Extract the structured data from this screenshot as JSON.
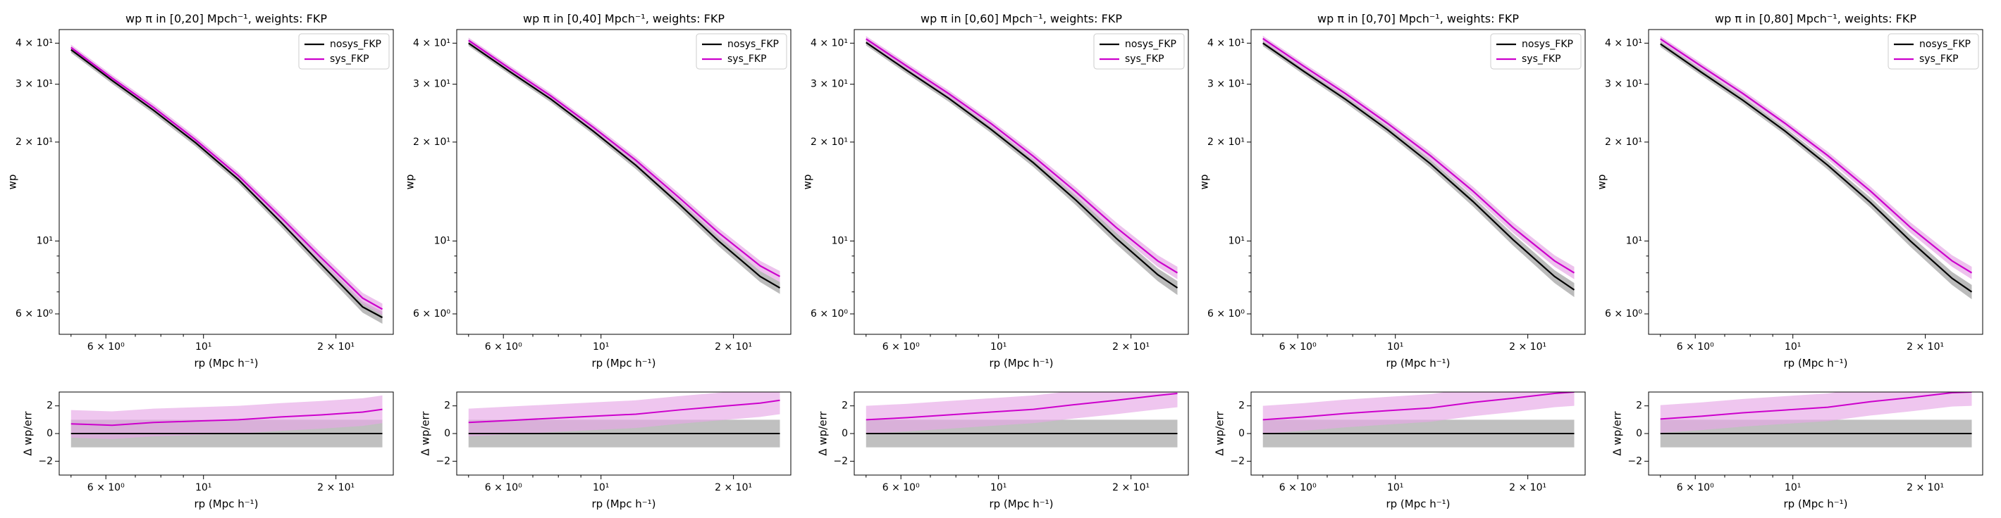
{
  "colors": {
    "nosys": "#000000",
    "sys": "#cc00cc",
    "nosys_band": "#9e9e9e",
    "sys_band": "#e6a8e6"
  },
  "legend_placement": "top-right",
  "chart_data": [
    {
      "type": "line",
      "title": "wp π in [0,20] Mpch⁻¹, weights: FKP",
      "top": {
        "xscale": "log",
        "yscale": "log",
        "xlabel": "rp (Mpc h⁻¹)",
        "ylabel": "wp",
        "xlim": [
          4.7,
          27
        ],
        "ylim": [
          5.2,
          44
        ],
        "xticks": [
          {
            "v": 6,
            "label": "6 × 10⁰"
          },
          {
            "v": 10,
            "label": "10¹"
          },
          {
            "v": 20,
            "label": "2 × 10¹"
          }
        ],
        "yticks": [
          {
            "v": 6,
            "label": "6 × 10⁰"
          },
          {
            "v": 10,
            "label": "10¹"
          },
          {
            "v": 20,
            "label": "2 × 10¹"
          },
          {
            "v": 30,
            "label": "3 × 10¹"
          },
          {
            "v": 40,
            "label": "4 × 10¹"
          }
        ],
        "x": [
          5,
          6.2,
          7.7,
          9.6,
          12,
          15,
          18.5,
          23,
          25.5
        ],
        "series": [
          {
            "name": "nosys_FKP",
            "values": [
              38.2,
              30.8,
              25.0,
              19.9,
              15.4,
              11.4,
              8.5,
              6.3,
              5.85
            ],
            "err": [
              0.8,
              0.7,
              0.6,
              0.5,
              0.4,
              0.35,
              0.3,
              0.25,
              0.25
            ]
          },
          {
            "name": "sys_FKP",
            "values": [
              38.8,
              31.3,
              25.5,
              20.3,
              15.8,
              11.8,
              8.9,
              6.7,
              6.2
            ],
            "err": [
              0.8,
              0.7,
              0.6,
              0.5,
              0.4,
              0.35,
              0.3,
              0.25,
              0.25
            ]
          }
        ]
      },
      "bottom": {
        "xscale": "log",
        "xlabel": "rp (Mpc h⁻¹)",
        "ylabel": "Δ wp/err",
        "ylim": [
          -3,
          3
        ],
        "yticks": [
          {
            "v": -2,
            "label": "−2"
          },
          {
            "v": 0,
            "label": "0"
          },
          {
            "v": 2,
            "label": "2"
          }
        ],
        "x": [
          5,
          6.2,
          7.7,
          9.6,
          12,
          15,
          18.5,
          23,
          25.5
        ],
        "nosys": [
          0,
          0,
          0,
          0,
          0,
          0,
          0,
          0,
          0
        ],
        "sys": [
          0.7,
          0.6,
          0.8,
          0.9,
          1.0,
          1.2,
          1.35,
          1.55,
          1.75
        ]
      }
    },
    {
      "type": "line",
      "title": "wp π in [0,40] Mpch⁻¹, weights: FKP",
      "top": {
        "xscale": "log",
        "yscale": "log",
        "xlabel": "rp (Mpc h⁻¹)",
        "ylabel": "wp",
        "xlim": [
          4.7,
          27
        ],
        "ylim": [
          5.2,
          44
        ],
        "xticks": [
          {
            "v": 6,
            "label": "6 × 10⁰"
          },
          {
            "v": 10,
            "label": "10¹"
          },
          {
            "v": 20,
            "label": "2 × 10¹"
          }
        ],
        "yticks": [
          {
            "v": 6,
            "label": "6 × 10⁰"
          },
          {
            "v": 10,
            "label": "10¹"
          },
          {
            "v": 20,
            "label": "2 × 10¹"
          },
          {
            "v": 30,
            "label": "3 × 10¹"
          },
          {
            "v": 40,
            "label": "4 × 10¹"
          }
        ],
        "x": [
          5,
          6.2,
          7.7,
          9.6,
          12,
          15,
          18.5,
          23,
          25.5
        ],
        "series": [
          {
            "name": "nosys_FKP",
            "values": [
              40.0,
              32.8,
              27.0,
              21.6,
              17.0,
              13.0,
              10.0,
              7.8,
              7.2
            ],
            "err": [
              0.8,
              0.7,
              0.6,
              0.5,
              0.45,
              0.4,
              0.35,
              0.3,
              0.3
            ]
          },
          {
            "name": "sys_FKP",
            "values": [
              40.8,
              33.5,
              27.6,
              22.2,
              17.6,
              13.6,
              10.6,
              8.4,
              7.8
            ],
            "err": [
              0.8,
              0.7,
              0.6,
              0.5,
              0.45,
              0.4,
              0.35,
              0.3,
              0.3
            ]
          }
        ]
      },
      "bottom": {
        "xscale": "log",
        "xlabel": "rp (Mpc h⁻¹)",
        "ylabel": "Δ wp/err",
        "ylim": [
          -3,
          3
        ],
        "yticks": [
          {
            "v": -2,
            "label": "−2"
          },
          {
            "v": 0,
            "label": "0"
          },
          {
            "v": 2,
            "label": "2"
          }
        ],
        "x": [
          5,
          6.2,
          7.7,
          9.6,
          12,
          15,
          18.5,
          23,
          25.5
        ],
        "nosys": [
          0,
          0,
          0,
          0,
          0,
          0,
          0,
          0,
          0
        ],
        "sys": [
          0.8,
          0.95,
          1.1,
          1.25,
          1.4,
          1.7,
          1.95,
          2.2,
          2.4
        ]
      }
    },
    {
      "type": "line",
      "title": "wp π in [0,60] Mpch⁻¹, weights: FKP",
      "top": {
        "xscale": "log",
        "yscale": "log",
        "xlabel": "rp (Mpc h⁻¹)",
        "ylabel": "wp",
        "xlim": [
          4.7,
          27
        ],
        "ylim": [
          5.2,
          44
        ],
        "xticks": [
          {
            "v": 6,
            "label": "6 × 10⁰"
          },
          {
            "v": 10,
            "label": "10¹"
          },
          {
            "v": 20,
            "label": "2 × 10¹"
          }
        ],
        "yticks": [
          {
            "v": 6,
            "label": "6 × 10⁰"
          },
          {
            "v": 10,
            "label": "10¹"
          },
          {
            "v": 20,
            "label": "2 × 10¹"
          },
          {
            "v": 30,
            "label": "3 × 10¹"
          },
          {
            "v": 40,
            "label": "4 × 10¹"
          }
        ],
        "x": [
          5,
          6.2,
          7.7,
          9.6,
          12,
          15,
          18.5,
          23,
          25.5
        ],
        "series": [
          {
            "name": "nosys_FKP",
            "values": [
              40.2,
              33.0,
              27.2,
              21.9,
              17.3,
              13.3,
              10.2,
              7.9,
              7.2
            ],
            "err": [
              0.85,
              0.75,
              0.65,
              0.55,
              0.5,
              0.45,
              0.4,
              0.35,
              0.35
            ]
          },
          {
            "name": "sys_FKP",
            "values": [
              41.2,
              34.0,
              28.1,
              22.8,
              18.1,
              14.1,
              11.0,
              8.7,
              8.0
            ],
            "err": [
              0.85,
              0.75,
              0.65,
              0.55,
              0.5,
              0.45,
              0.4,
              0.35,
              0.35
            ]
          }
        ]
      },
      "bottom": {
        "xscale": "log",
        "xlabel": "rp (Mpc h⁻¹)",
        "ylabel": "Δ wp/err",
        "ylim": [
          -3,
          3
        ],
        "yticks": [
          {
            "v": -2,
            "label": "−2"
          },
          {
            "v": 0,
            "label": "0"
          },
          {
            "v": 2,
            "label": "2"
          }
        ],
        "x": [
          5,
          6.2,
          7.7,
          9.6,
          12,
          15,
          18.5,
          23,
          25.5
        ],
        "nosys": [
          0,
          0,
          0,
          0,
          0,
          0,
          0,
          0,
          0
        ],
        "sys": [
          1.0,
          1.15,
          1.35,
          1.55,
          1.75,
          2.1,
          2.4,
          2.75,
          2.9
        ]
      }
    },
    {
      "type": "line",
      "title": "wp π in [0,70] Mpch⁻¹, weights: FKP",
      "top": {
        "xscale": "log",
        "yscale": "log",
        "xlabel": "rp (Mpc h⁻¹)",
        "ylabel": "wp",
        "xlim": [
          4.7,
          27
        ],
        "ylim": [
          5.2,
          44
        ],
        "xticks": [
          {
            "v": 6,
            "label": "6 × 10⁰"
          },
          {
            "v": 10,
            "label": "10¹"
          },
          {
            "v": 20,
            "label": "2 × 10¹"
          }
        ],
        "yticks": [
          {
            "v": 6,
            "label": "6 × 10⁰"
          },
          {
            "v": 10,
            "label": "10¹"
          },
          {
            "v": 20,
            "label": "2 × 10¹"
          },
          {
            "v": 30,
            "label": "3 × 10¹"
          },
          {
            "v": 40,
            "label": "4 × 10¹"
          }
        ],
        "x": [
          5,
          6.2,
          7.7,
          9.6,
          12,
          15,
          18.5,
          23,
          25.5
        ],
        "series": [
          {
            "name": "nosys_FKP",
            "values": [
              40.0,
              32.8,
              27.0,
              21.8,
              17.2,
              13.2,
              10.1,
              7.8,
              7.1
            ],
            "err": [
              0.85,
              0.75,
              0.65,
              0.55,
              0.5,
              0.45,
              0.4,
              0.35,
              0.35
            ]
          },
          {
            "name": "sys_FKP",
            "values": [
              41.3,
              34.0,
              28.1,
              22.8,
              18.2,
              14.2,
              11.0,
              8.7,
              8.0
            ],
            "err": [
              0.85,
              0.75,
              0.65,
              0.55,
              0.5,
              0.45,
              0.4,
              0.35,
              0.35
            ]
          }
        ]
      },
      "bottom": {
        "xscale": "log",
        "xlabel": "rp (Mpc h⁻¹)",
        "ylabel": "Δ wp/err",
        "ylim": [
          -3,
          3
        ],
        "yticks": [
          {
            "v": -2,
            "label": "−2"
          },
          {
            "v": 0,
            "label": "0"
          },
          {
            "v": 2,
            "label": "2"
          }
        ],
        "x": [
          5,
          6.2,
          7.7,
          9.6,
          12,
          15,
          18.5,
          23,
          25.5
        ],
        "nosys": [
          0,
          0,
          0,
          0,
          0,
          0,
          0,
          0,
          0
        ],
        "sys": [
          1.0,
          1.2,
          1.45,
          1.65,
          1.85,
          2.25,
          2.55,
          2.9,
          3.0
        ]
      }
    },
    {
      "type": "line",
      "title": "wp π in [0,80] Mpch⁻¹, weights: FKP",
      "top": {
        "xscale": "log",
        "yscale": "log",
        "xlabel": "rp (Mpc h⁻¹)",
        "ylabel": "wp",
        "xlim": [
          4.7,
          27
        ],
        "ylim": [
          5.2,
          44
        ],
        "xticks": [
          {
            "v": 6,
            "label": "6 × 10⁰"
          },
          {
            "v": 10,
            "label": "10¹"
          },
          {
            "v": 20,
            "label": "2 × 10¹"
          }
        ],
        "yticks": [
          {
            "v": 6,
            "label": "6 × 10⁰"
          },
          {
            "v": 10,
            "label": "10¹"
          },
          {
            "v": 20,
            "label": "2 × 10¹"
          },
          {
            "v": 30,
            "label": "3 × 10¹"
          },
          {
            "v": 40,
            "label": "4 × 10¹"
          }
        ],
        "x": [
          5,
          6.2,
          7.7,
          9.6,
          12,
          15,
          18.5,
          23,
          25.5
        ],
        "series": [
          {
            "name": "nosys_FKP",
            "values": [
              39.8,
              32.6,
              26.8,
              21.6,
              17.0,
              13.1,
              10.0,
              7.7,
              7.0
            ],
            "err": [
              0.85,
              0.75,
              0.65,
              0.55,
              0.5,
              0.45,
              0.4,
              0.35,
              0.35
            ]
          },
          {
            "name": "sys_FKP",
            "values": [
              41.2,
              34.0,
              28.1,
              22.8,
              18.2,
              14.2,
              11.0,
              8.7,
              8.0
            ],
            "err": [
              0.85,
              0.75,
              0.65,
              0.55,
              0.5,
              0.45,
              0.4,
              0.35,
              0.35
            ]
          }
        ]
      },
      "bottom": {
        "xscale": "log",
        "xlabel": "rp (Mpc h⁻¹)",
        "ylabel": "Δ wp/err",
        "ylim": [
          -3,
          3
        ],
        "yticks": [
          {
            "v": -2,
            "label": "−2"
          },
          {
            "v": 0,
            "label": "0"
          },
          {
            "v": 2,
            "label": "2"
          }
        ],
        "x": [
          5,
          6.2,
          7.7,
          9.6,
          12,
          15,
          18.5,
          23,
          25.5
        ],
        "nosys": [
          0,
          0,
          0,
          0,
          0,
          0,
          0,
          0,
          0
        ],
        "sys": [
          1.05,
          1.25,
          1.5,
          1.7,
          1.9,
          2.3,
          2.6,
          2.95,
          3.0
        ]
      }
    }
  ]
}
